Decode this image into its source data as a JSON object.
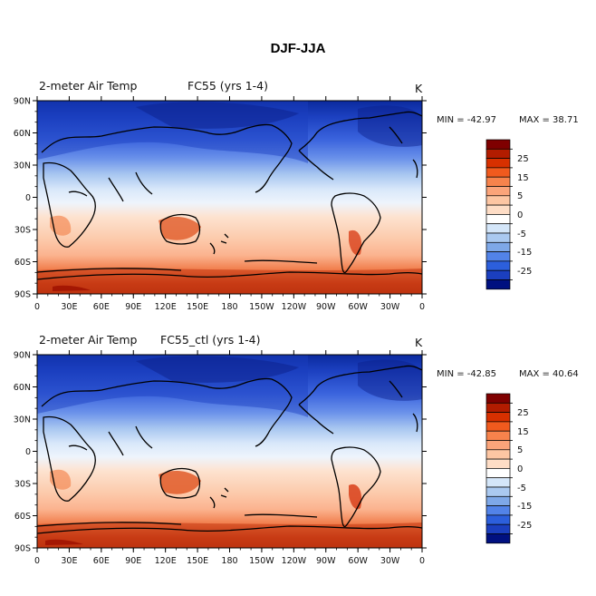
{
  "title": "DJF-JJA",
  "panels": [
    {
      "left_title": "2-meter Air Temp",
      "center_title": "FC55 (yrs 1-4)",
      "units": "K",
      "min_label": "MIN = -42.97",
      "max_label": "MAX =  38.71"
    },
    {
      "left_title": "2-meter Air Temp",
      "center_title": "FC55_ctl (yrs 1-4)",
      "units": "K",
      "min_label": "MIN = -42.85",
      "max_label": "MAX =  40.64"
    }
  ],
  "lat_labels": [
    "90N",
    "60N",
    "30N",
    "0",
    "30S",
    "60S",
    "90S"
  ],
  "lon_labels": [
    "0",
    "30E",
    "60E",
    "90E",
    "120E",
    "150E",
    "180",
    "150W",
    "120W",
    "90W",
    "60W",
    "30W",
    "0"
  ],
  "colorbar": {
    "tick_labels": [
      "25",
      "15",
      "5",
      "0",
      "-5",
      "-15",
      "-25"
    ],
    "colors": [
      "#7f0000",
      "#b21c00",
      "#d73000",
      "#f05a1e",
      "#f7834c",
      "#fba47a",
      "#fdc6a3",
      "#feddc6",
      "#ffffff",
      "#d4e6f9",
      "#aac9f0",
      "#7ea8e8",
      "#5283e8",
      "#2c5fdc",
      "#1b3fbf",
      "#001080"
    ]
  }
}
